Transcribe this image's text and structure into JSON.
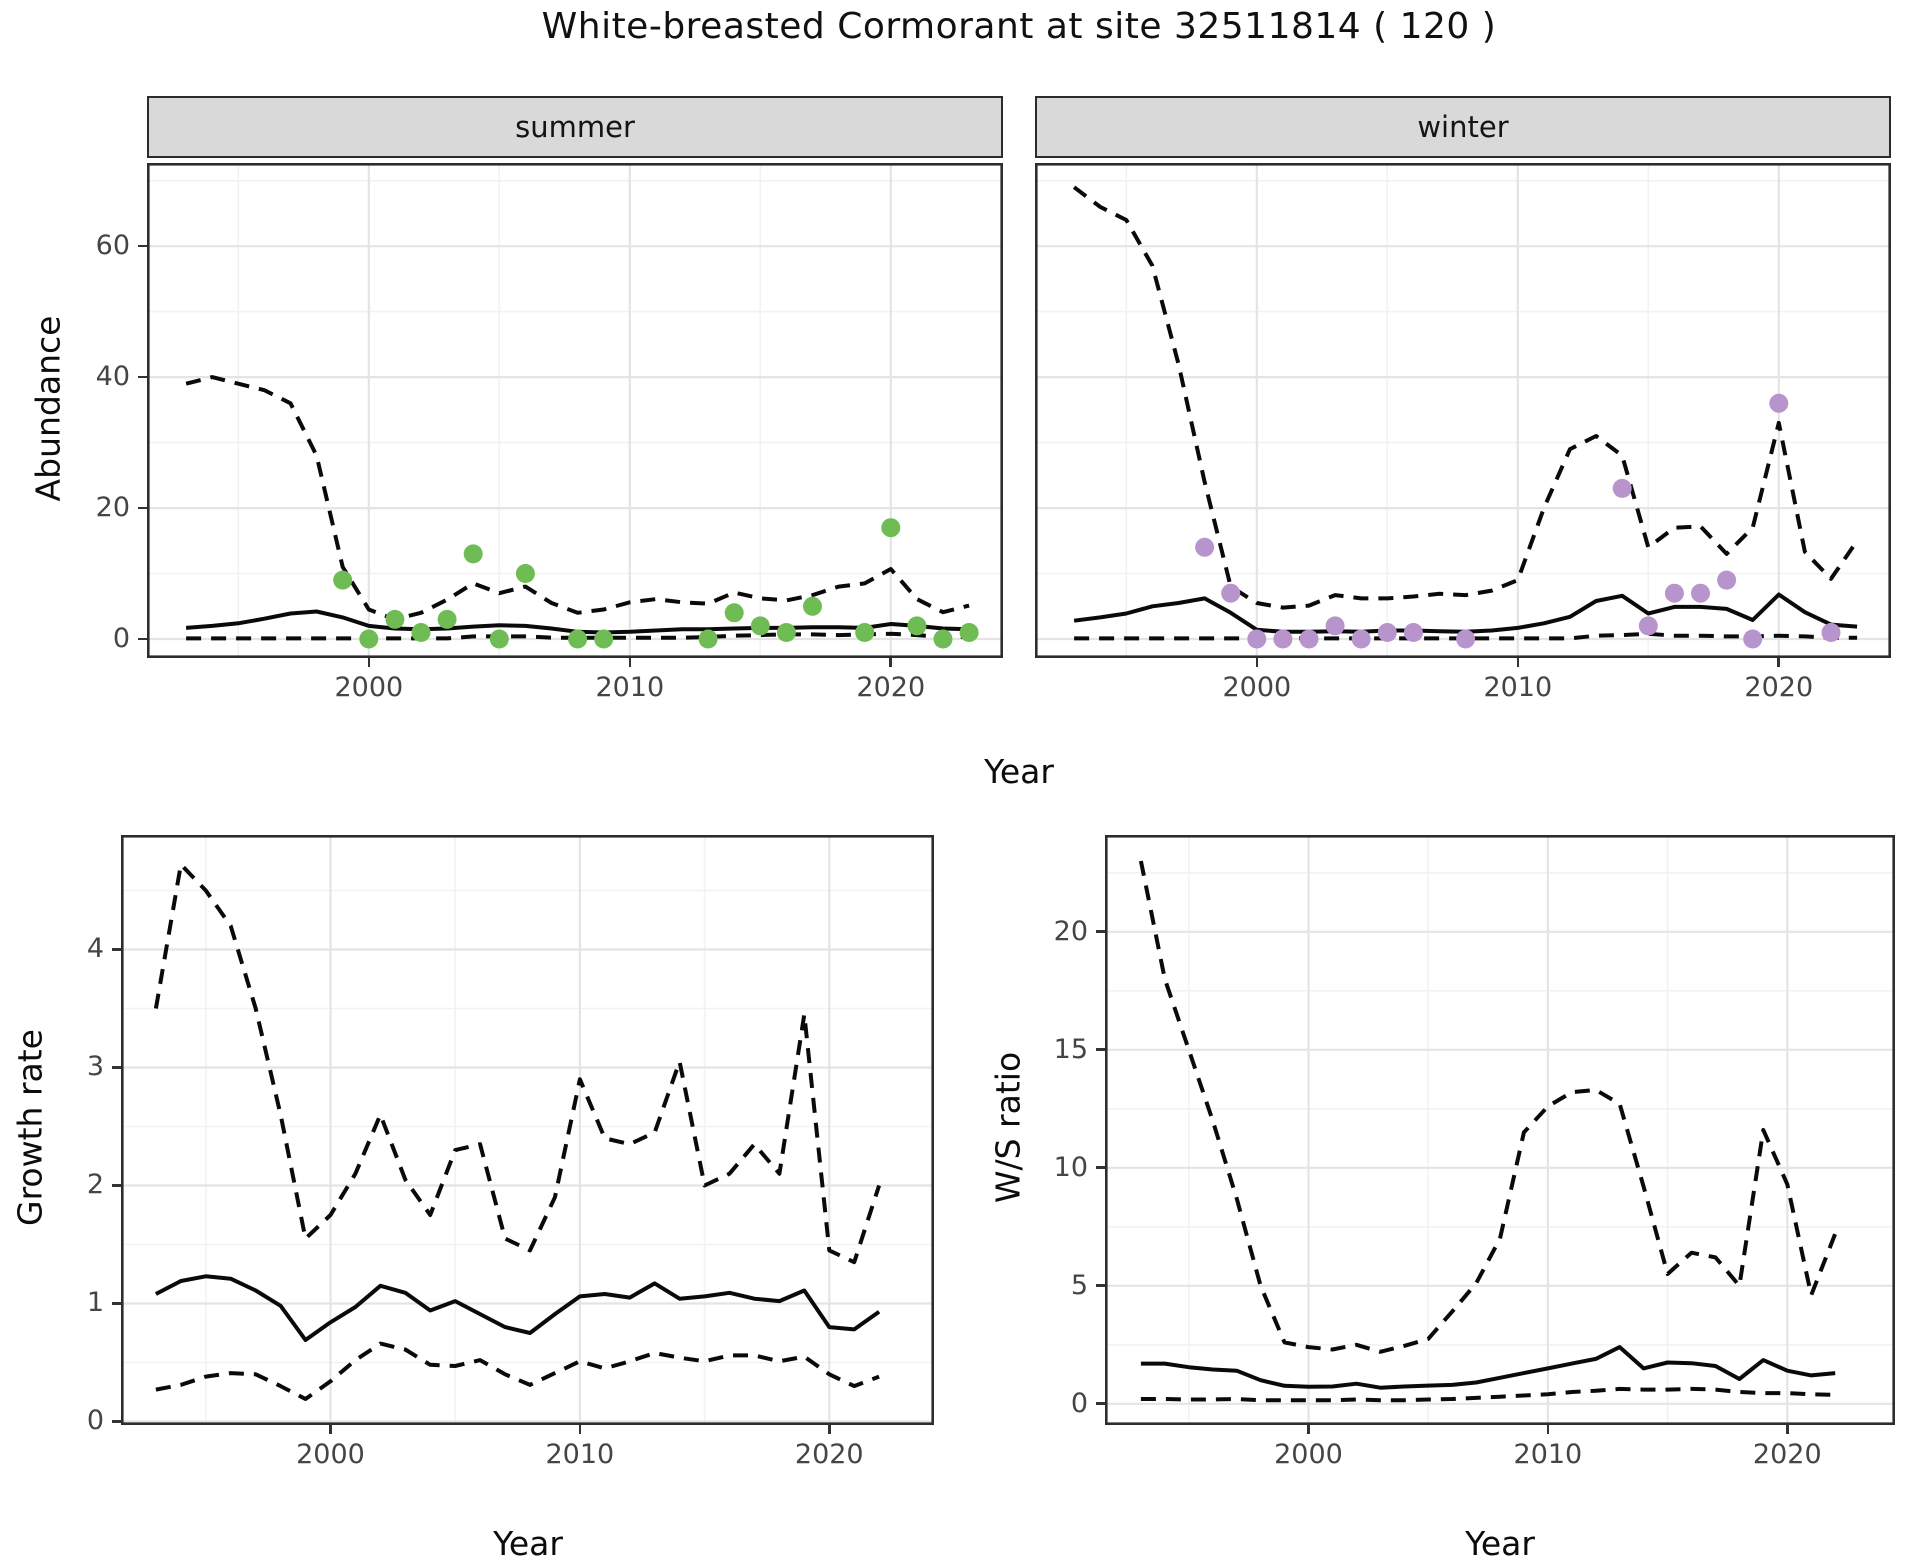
{
  "title": "White-breasted Cormorant at site 32511814 ( 120 )",
  "axis_titles": {
    "abundance": "Abundance",
    "year": "Year",
    "growth_rate": "Growth rate",
    "ws_ratio": "W/S ratio"
  },
  "colors": {
    "summer_point": "#6fbc55",
    "winter_point": "#b894cd",
    "line": "#0a0a0a",
    "strip_bg": "#d9d9d9",
    "grid_major": "#e4e4e4",
    "grid_minor": "#f2f2f2",
    "panel_border": "#2d2d2d",
    "tick_text": "#454545"
  },
  "chart_data": [
    {
      "id": "summer",
      "type": "line",
      "facet": "summer",
      "xlabel": "Year",
      "ylabel": "Abundance",
      "xlim": [
        1991.5,
        2024.3
      ],
      "ylim": [
        -2.9,
        72.7
      ],
      "xticks": [
        2000,
        2010,
        2020
      ],
      "yticks": [
        0,
        20,
        40,
        60
      ],
      "x_minor": [
        1995,
        2005,
        2015
      ],
      "y_minor": [
        10,
        30,
        50,
        70
      ],
      "x": [
        1993,
        1994,
        1995,
        1996,
        1997,
        1998,
        1999,
        2000,
        2001,
        2002,
        2003,
        2004,
        2005,
        2006,
        2007,
        2008,
        2009,
        2010,
        2011,
        2012,
        2013,
        2014,
        2015,
        2016,
        2017,
        2018,
        2019,
        2020,
        2021,
        2022,
        2023
      ],
      "series": [
        {
          "name": "median",
          "style": "solid",
          "values": [
            1.7,
            2.0,
            2.4,
            3.1,
            3.9,
            4.2,
            3.3,
            2.0,
            1.6,
            1.5,
            1.6,
            1.9,
            2.1,
            2.0,
            1.6,
            1.1,
            1.0,
            1.1,
            1.3,
            1.5,
            1.5,
            1.6,
            1.7,
            1.7,
            1.8,
            1.8,
            1.7,
            2.3,
            2.0,
            1.6,
            1.5
          ]
        },
        {
          "name": "upper_ci",
          "style": "dashed",
          "values": [
            39,
            40,
            39,
            38,
            36,
            28,
            11,
            4.5,
            3,
            4,
            6,
            8.5,
            7,
            8,
            5.5,
            4,
            4.5,
            5.6,
            6.1,
            5.6,
            5.4,
            7.1,
            6.2,
            5.9,
            6.7,
            8,
            8.5,
            10.7,
            6.1,
            4.1,
            5.1
          ]
        },
        {
          "name": "lower_ci",
          "style": "dashed",
          "values": [
            0.1,
            0.1,
            0.1,
            0.1,
            0.1,
            0.1,
            0.1,
            0.1,
            0.1,
            0.1,
            0.1,
            0.4,
            0.4,
            0.4,
            0.2,
            0.2,
            0.2,
            0.2,
            0.2,
            0.2,
            0.3,
            0.5,
            0.6,
            0.7,
            0.7,
            0.6,
            0.7,
            0.8,
            0.6,
            0.3,
            0.3
          ]
        }
      ],
      "points": {
        "name": "observed-counts-summer",
        "color": "#6fbc55",
        "x": [
          1999,
          2000,
          2001,
          2002,
          2003,
          2004,
          2005,
          2006,
          2008,
          2009,
          2013,
          2014,
          2015,
          2016,
          2017,
          2019,
          2020,
          2021,
          2022,
          2023
        ],
        "y": [
          9,
          0,
          3,
          1,
          3,
          13,
          0,
          10,
          0,
          0,
          0,
          4,
          2,
          1,
          5,
          1,
          17,
          2,
          0,
          1
        ]
      }
    },
    {
      "id": "winter",
      "type": "line",
      "facet": "winter",
      "xlabel": "Year",
      "ylabel": "Abundance",
      "xlim": [
        1991.5,
        2024.3
      ],
      "ylim": [
        -2.9,
        72.7
      ],
      "xticks": [
        2000,
        2010,
        2020
      ],
      "yticks": [
        0,
        20,
        40,
        60
      ],
      "x_minor": [
        1995,
        2005,
        2015
      ],
      "y_minor": [
        10,
        30,
        50,
        70
      ],
      "x": [
        1993,
        1994,
        1995,
        1996,
        1997,
        1998,
        1999,
        2000,
        2001,
        2002,
        2003,
        2004,
        2005,
        2006,
        2007,
        2008,
        2009,
        2010,
        2011,
        2012,
        2013,
        2014,
        2015,
        2016,
        2017,
        2018,
        2019,
        2020,
        2021,
        2022,
        2023
      ],
      "series": [
        {
          "name": "median",
          "style": "solid",
          "values": [
            2.8,
            3.3,
            3.9,
            5.0,
            5.5,
            6.2,
            4.0,
            1.4,
            1.1,
            1.1,
            1.2,
            1.1,
            1.3,
            1.3,
            1.2,
            1.1,
            1.3,
            1.7,
            2.4,
            3.4,
            5.8,
            6.6,
            3.9,
            4.9,
            4.9,
            4.6,
            2.9,
            6.8,
            4.1,
            2.2,
            1.9
          ]
        },
        {
          "name": "upper_ci",
          "style": "dashed",
          "values": [
            69,
            66,
            64,
            57,
            42,
            24,
            8,
            5.5,
            4.8,
            5.1,
            6.7,
            6.2,
            6.2,
            6.5,
            6.9,
            6.7,
            7.4,
            9,
            20,
            29,
            31,
            28,
            14,
            17,
            17.2,
            13,
            17,
            33,
            13.3,
            9.2,
            15
          ]
        },
        {
          "name": "lower_ci",
          "style": "dashed",
          "values": [
            0.1,
            0.1,
            0.1,
            0.1,
            0.1,
            0.1,
            0.1,
            0.1,
            0.1,
            0.1,
            0.1,
            0.1,
            0.1,
            0.1,
            0.1,
            0.1,
            0.1,
            0.1,
            0.1,
            0.1,
            0.5,
            0.6,
            0.8,
            0.5,
            0.5,
            0.4,
            0.4,
            0.5,
            0.4,
            0.2,
            0.2
          ]
        }
      ],
      "points": {
        "name": "observed-counts-winter",
        "color": "#b894cd",
        "x": [
          1998,
          1999,
          2000,
          2001,
          2002,
          2003,
          2004,
          2005,
          2006,
          2008,
          2014,
          2015,
          2016,
          2017,
          2018,
          2019,
          2020,
          2022
        ],
        "y": [
          14,
          7,
          0,
          0,
          0,
          2,
          0,
          1,
          1,
          0,
          23,
          2,
          7,
          7,
          9,
          0,
          36,
          1
        ]
      }
    },
    {
      "id": "growth",
      "type": "line",
      "facet": null,
      "xlabel": "Year",
      "ylabel": "Growth rate",
      "xlim": [
        1991.6,
        2024.2
      ],
      "ylim": [
        -0.03,
        4.97
      ],
      "xticks": [
        2000,
        2010,
        2020
      ],
      "yticks": [
        0,
        1,
        2,
        3,
        4
      ],
      "x_minor": [
        1995,
        2005,
        2015
      ],
      "y_minor": [
        0.5,
        1.5,
        2.5,
        3.5,
        4.5
      ],
      "x": [
        1993,
        1994,
        1995,
        1996,
        1997,
        1998,
        1999,
        2000,
        2001,
        2002,
        2003,
        2004,
        2005,
        2006,
        2007,
        2008,
        2009,
        2010,
        2011,
        2012,
        2013,
        2014,
        2015,
        2016,
        2017,
        2018,
        2019,
        2020,
        2021,
        2022
      ],
      "series": [
        {
          "name": "median",
          "style": "solid",
          "values": [
            1.08,
            1.19,
            1.23,
            1.21,
            1.11,
            0.98,
            0.69,
            0.84,
            0.97,
            1.15,
            1.09,
            0.94,
            1.02,
            0.91,
            0.8,
            0.75,
            0.91,
            1.06,
            1.08,
            1.05,
            1.17,
            1.04,
            1.06,
            1.09,
            1.04,
            1.02,
            1.11,
            0.8,
            0.78,
            0.93
          ]
        },
        {
          "name": "upper_ci",
          "style": "dashed",
          "values": [
            3.5,
            4.72,
            4.5,
            4.2,
            3.5,
            2.6,
            1.55,
            1.75,
            2.1,
            2.6,
            2.05,
            1.75,
            2.3,
            2.35,
            1.55,
            1.45,
            1.9,
            2.9,
            2.4,
            2.35,
            2.45,
            3.05,
            2.0,
            2.1,
            2.35,
            2.1,
            3.45,
            1.45,
            1.35,
            2.0
          ]
        },
        {
          "name": "lower_ci",
          "style": "dashed",
          "values": [
            0.27,
            0.31,
            0.38,
            0.41,
            0.4,
            0.3,
            0.19,
            0.34,
            0.52,
            0.66,
            0.61,
            0.48,
            0.47,
            0.52,
            0.4,
            0.31,
            0.41,
            0.51,
            0.45,
            0.51,
            0.58,
            0.54,
            0.51,
            0.56,
            0.56,
            0.51,
            0.55,
            0.4,
            0.3,
            0.38
          ]
        }
      ],
      "points": null
    },
    {
      "id": "ws",
      "type": "line",
      "facet": null,
      "xlabel": "Year",
      "ylabel": "W/S ratio",
      "xlim": [
        1991.5,
        2024.5
      ],
      "ylim": [
        -0.9,
        24.1
      ],
      "xticks": [
        2000,
        2010,
        2020
      ],
      "yticks": [
        0,
        5,
        10,
        15,
        20
      ],
      "x_minor": [
        1995,
        2005,
        2015
      ],
      "y_minor": [
        2.5,
        7.5,
        12.5,
        17.5,
        22.5
      ],
      "x": [
        1993,
        1994,
        1995,
        1996,
        1997,
        1998,
        1999,
        2000,
        2001,
        2002,
        2003,
        2004,
        2005,
        2006,
        2007,
        2008,
        2009,
        2010,
        2011,
        2012,
        2013,
        2014,
        2015,
        2016,
        2017,
        2018,
        2019,
        2020,
        2021,
        2022
      ],
      "series": [
        {
          "name": "median",
          "style": "solid",
          "values": [
            1.7,
            1.7,
            1.55,
            1.45,
            1.4,
            1.0,
            0.76,
            0.72,
            0.73,
            0.85,
            0.68,
            0.73,
            0.77,
            0.8,
            0.9,
            1.1,
            1.3,
            1.5,
            1.7,
            1.9,
            2.4,
            1.5,
            1.75,
            1.72,
            1.6,
            1.05,
            1.85,
            1.4,
            1.2,
            1.3
          ]
        },
        {
          "name": "upper_ci",
          "style": "dashed",
          "values": [
            23,
            18,
            15,
            12,
            8.7,
            5.0,
            2.6,
            2.4,
            2.3,
            2.5,
            2.2,
            2.45,
            2.75,
            3.9,
            5.1,
            7.0,
            11.5,
            12.6,
            13.2,
            13.3,
            12.7,
            9.2,
            5.5,
            6.4,
            6.2,
            5.0,
            11.6,
            9.3,
            4.6,
            7.2
          ]
        },
        {
          "name": "lower_ci",
          "style": "dashed",
          "values": [
            0.2,
            0.2,
            0.18,
            0.18,
            0.2,
            0.15,
            0.15,
            0.15,
            0.15,
            0.18,
            0.15,
            0.15,
            0.18,
            0.2,
            0.25,
            0.3,
            0.35,
            0.4,
            0.5,
            0.55,
            0.63,
            0.6,
            0.6,
            0.63,
            0.6,
            0.5,
            0.45,
            0.45,
            0.4,
            0.38
          ]
        }
      ],
      "points": null
    }
  ]
}
